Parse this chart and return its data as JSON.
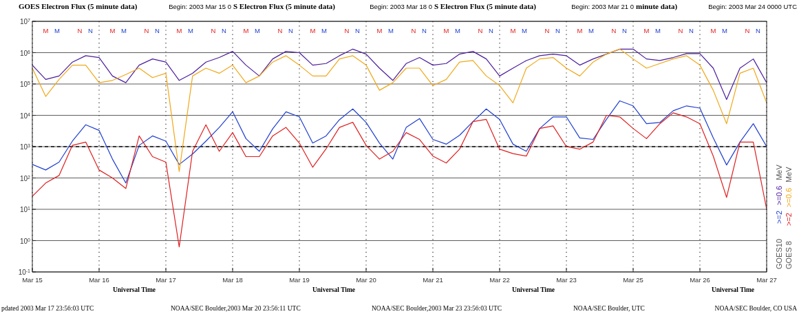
{
  "chart_data": {
    "type": "line",
    "title": "GOES Electron Flux (5 minute data)",
    "xlabel": "Universal Time",
    "annotations": [
      "Begin: 2003 Mar 15 0",
      "S Electron Flux (5 minute data)",
      "Begin: 2003 Mar 18 0",
      "S Electron Flux (5 minute data)",
      "Begin: 2003 Mar 21 0",
      "minute data)",
      "Begin: 2003 Mar 24 0000 UTC",
      "Universal Time",
      "Universal Time",
      "Universal Time",
      "pdated 2003 Mar 17 23:56:03 UTC",
      "NOAA/SEC Boulder,2003 Mar 20 23:56:11 UTC",
      "NOAA/SEC Boulder,2003 Mar 23 23:56:03 UTC",
      "NOAA/SEC Boulder, UTC",
      "NOAA/SEC Boulder, CO USA",
      "GOES10",
      "MeV",
      "GOES 8",
      "MeV",
      "M",
      "M",
      "N",
      "N",
      "M",
      "M",
      "N",
      "N",
      "M",
      "M",
      "N",
      "N",
      "M",
      "M",
      "N",
      "N",
      "M",
      "M",
      "N",
      "N",
      "M",
      "M",
      "N",
      "N",
      "M",
      "M",
      "N",
      "N",
      "M",
      "M",
      "N",
      "N",
      "M",
      "M",
      "N",
      "N",
      "M",
      "M",
      "N",
      "N",
      "M",
      "M",
      "N",
      "N"
    ],
    "categories": [
      "Mar 15",
      null,
      null,
      null,
      null,
      "Mar 16",
      null,
      null,
      null,
      null,
      "Mar 17",
      null,
      null,
      null,
      null,
      "Mar 18",
      null,
      null,
      null,
      null,
      "Mar 19",
      null,
      null,
      null,
      null,
      "Mar 20",
      null,
      null,
      null,
      null,
      "Mar 21",
      null,
      null,
      null,
      null,
      "Mar 22",
      null,
      null,
      null,
      null,
      "Mar 23",
      null,
      null,
      null,
      null,
      "Mar 25",
      null,
      null,
      null,
      null,
      "Mar 26",
      null,
      null,
      null,
      null,
      "Mar 27"
    ],
    "log": true,
    "ylim": [
      0.1,
      10000000
    ],
    "yticks": [
      {
        "value": 0.1,
        "label": "10$^{-1}$"
      },
      {
        "value": 1,
        "label": "10$^{0}$"
      },
      {
        "value": 10,
        "label": "10$^{1}$"
      },
      {
        "value": 100,
        "label": "10$^{2}$"
      },
      {
        "value": 1000,
        "label": "10$^{3}$"
      },
      {
        "value": 10000,
        "label": "10$^{4}$"
      },
      {
        "value": 100000,
        "label": "10$^{5}$"
      },
      {
        "value": 1000000,
        "label": "10$^{6}$"
      },
      {
        "value": 10000000,
        "label": "10$^{7}$"
      }
    ],
    "grid": true,
    "legend": "right",
    "ref_lines": [
      {
        "axis": "y",
        "value": 1000,
        "line_style": "dashed"
      }
    ],
    "series": [
      {
        "name": ">=2",
        "color": "#1f3fd0",
        "values": [
          270,
          180,
          320,
          1500,
          5000,
          3300,
          400,
          69,
          1100,
          2200,
          1500,
          270,
          580,
          1500,
          4100,
          13000,
          1800,
          710,
          3700,
          13000,
          8900,
          1300,
          2200,
          7200,
          16000,
          5900,
          1300,
          400,
          4100,
          7900,
          1700,
          1200,
          2300,
          6300,
          16000,
          7400,
          1200,
          710,
          3800,
          8900,
          8900,
          1900,
          1700,
          7400,
          29000,
          20000,
          5400,
          5900,
          14000,
          20000,
          17000,
          1900,
          260,
          1400,
          5400,
          1000
        ]
      },
      {
        "name": ">=0.6",
        "color": "#4b1d9e",
        "values": [
          400000,
          140000,
          180000,
          500000,
          800000,
          700000,
          180000,
          110000,
          400000,
          630000,
          500000,
          130000,
          220000,
          500000,
          700000,
          1100000,
          400000,
          180000,
          630000,
          1100000,
          1000000,
          400000,
          450000,
          800000,
          1300000,
          900000,
          320000,
          130000,
          450000,
          700000,
          400000,
          450000,
          900000,
          1100000,
          630000,
          180000,
          320000,
          560000,
          800000,
          900000,
          800000,
          400000,
          630000,
          900000,
          1300000,
          1300000,
          630000,
          560000,
          700000,
          930000,
          930000,
          320000,
          32000,
          320000,
          630000,
          110000
        ]
      },
      {
        "name": ">=2",
        "color": "#e01e1e",
        "values": [
          26,
          69,
          120,
          1100,
          1400,
          180,
          100,
          46,
          2200,
          480,
          320,
          0.63,
          710,
          5000,
          710,
          2800,
          480,
          480,
          2200,
          4100,
          1300,
          220,
          850,
          4100,
          6000,
          1100,
          400,
          710,
          2800,
          1700,
          500,
          300,
          830,
          6300,
          7400,
          830,
          600,
          500,
          3800,
          4600,
          1000,
          830,
          1400,
          10000,
          8900,
          3800,
          1800,
          5400,
          12000,
          8900,
          5400,
          500,
          24,
          1400,
          1400,
          10
        ]
      },
      {
        "name": ">=0.6",
        "color": "#f0a818",
        "values": [
          320000,
          40000,
          140000,
          400000,
          400000,
          110000,
          130000,
          200000,
          320000,
          160000,
          220000,
          160,
          180000,
          320000,
          220000,
          400000,
          110000,
          180000,
          500000,
          800000,
          400000,
          180000,
          180000,
          630000,
          800000,
          400000,
          63000,
          110000,
          320000,
          320000,
          89000,
          140000,
          500000,
          560000,
          180000,
          89000,
          25000,
          320000,
          630000,
          700000,
          320000,
          180000,
          500000,
          900000,
          1300000,
          630000,
          320000,
          450000,
          630000,
          800000,
          400000,
          63000,
          5400,
          220000,
          320000,
          25000
        ]
      }
    ]
  }
}
